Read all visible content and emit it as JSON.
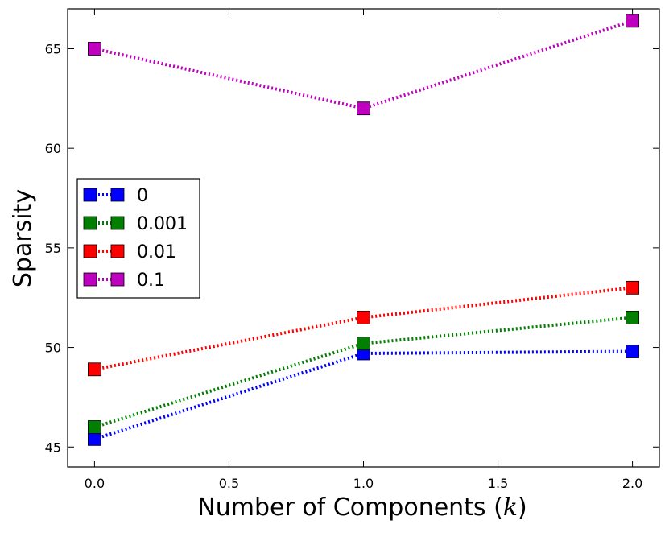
{
  "chart_data": {
    "type": "line",
    "title": "",
    "xlabel": "Number of Components (",
    "xlabel_math": "k",
    "xlabel_close": ")",
    "ylabel": "Sparsity",
    "xlim": [
      -0.1,
      2.1
    ],
    "ylim": [
      44.0,
      67.0
    ],
    "xticks": [
      0.0,
      0.5,
      1.0,
      1.5,
      2.0
    ],
    "xtick_labels": [
      "0.0",
      "0.5",
      "1.0",
      "1.5",
      "2.0"
    ],
    "yticks": [
      45,
      50,
      55,
      60,
      65
    ],
    "ytick_labels": [
      "45",
      "50",
      "55",
      "60",
      "65"
    ],
    "x": [
      0.0,
      1.0,
      2.0
    ],
    "series": [
      {
        "name": "0",
        "color": "#0000ff",
        "values": [
          45.4,
          49.7,
          49.8
        ]
      },
      {
        "name": "0.001",
        "color": "#007f00",
        "values": [
          46.0,
          50.2,
          51.5
        ]
      },
      {
        "name": "0.01",
        "color": "#ff0000",
        "values": [
          48.9,
          51.5,
          53.0
        ]
      },
      {
        "name": "0.1",
        "color": "#bf00bf",
        "values": [
          65.0,
          62.0,
          66.4
        ]
      }
    ],
    "line_style": "dotted",
    "marker": "square",
    "legend_position": "center-left",
    "grid": false
  }
}
